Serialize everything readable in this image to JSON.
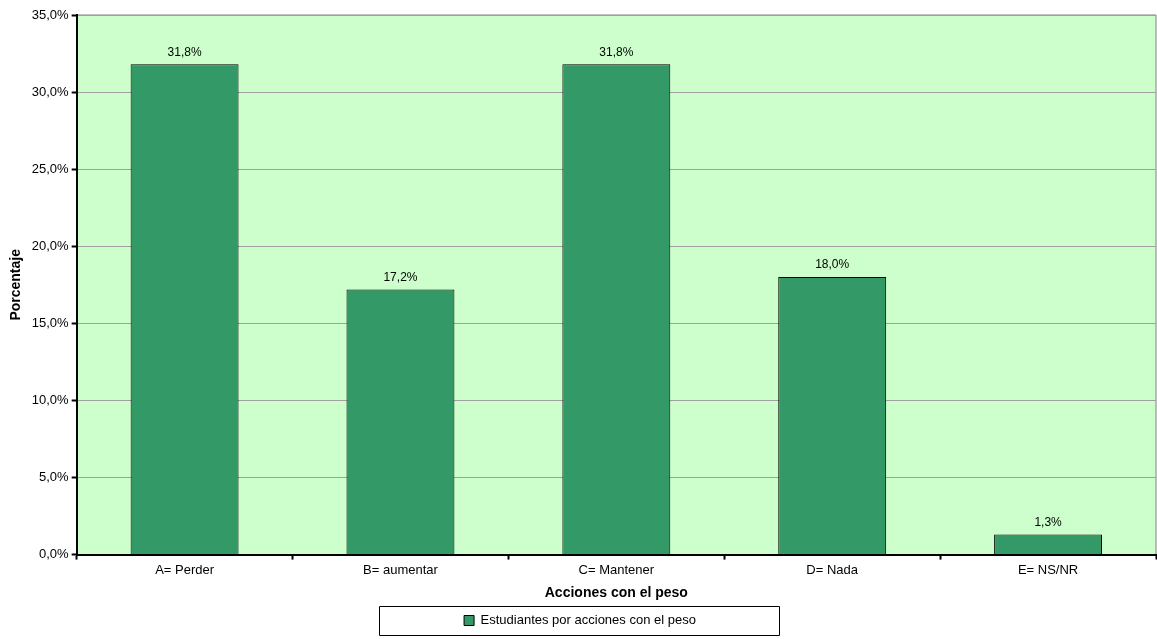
{
  "chart_data": {
    "type": "bar",
    "xlabel": "Acciones con el peso",
    "ylabel": "Porcentaje",
    "categories": [
      "A= Perder",
      "B= aumentar",
      "C= Mantener",
      "D= Nada",
      "E= NS/NR"
    ],
    "series": [
      {
        "name": "Estudiantes por acciones con el peso",
        "color": "#339966",
        "values": [
          31.8,
          17.2,
          31.8,
          18.0,
          1.3
        ],
        "value_labels": [
          "31,8%",
          "17,2%",
          "31,8%",
          "18,0%",
          "1,3%"
        ]
      }
    ],
    "ylim": [
      0,
      35
    ],
    "yticks": [
      {
        "value": 0,
        "label": "0,0%"
      },
      {
        "value": 5,
        "label": "5,0%"
      },
      {
        "value": 10,
        "label": "10,0%"
      },
      {
        "value": 15,
        "label": "15,0%"
      },
      {
        "value": 20,
        "label": "20,0%"
      },
      {
        "value": 25,
        "label": "25,0%"
      },
      {
        "value": 30,
        "label": "30,0%"
      },
      {
        "value": 35,
        "label": "35,0%"
      }
    ],
    "grid": "y",
    "legend": "bottom"
  }
}
